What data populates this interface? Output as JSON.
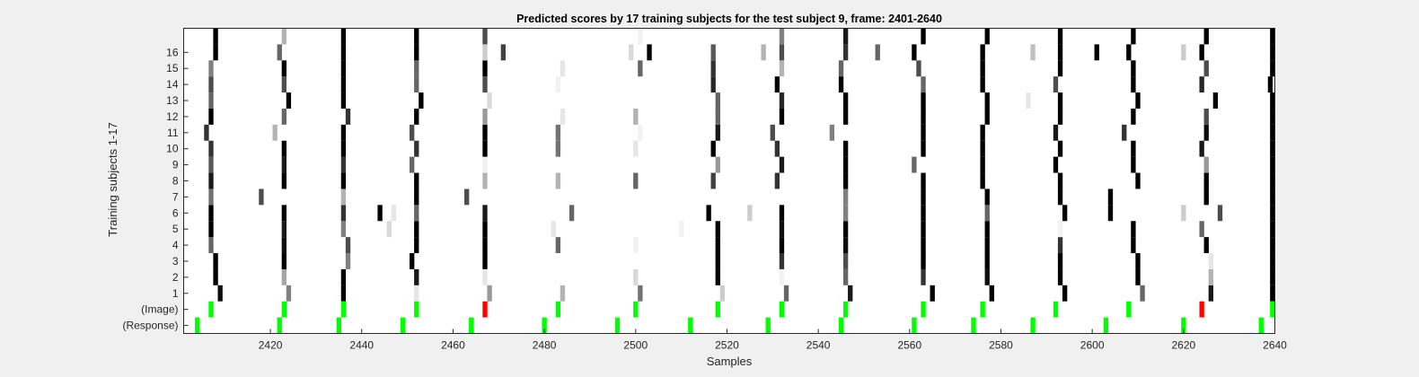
{
  "chart_data": {
    "type": "heatmap",
    "title": "Predicted scores by 17 training subjects for the test subject 9, frame: 2401-2640",
    "xlabel": "Samples",
    "ylabel": "Training subjects 1-17",
    "xlim": [
      2401,
      2640
    ],
    "xticks": [
      2420,
      2440,
      2460,
      2480,
      2500,
      2520,
      2540,
      2560,
      2580,
      2600,
      2620,
      2640
    ],
    "row_labels": [
      "(Response)",
      "(Image)",
      "1",
      "2",
      "3",
      "4",
      "5",
      "6",
      "7",
      "8",
      "9",
      "10",
      "11",
      "12",
      "13",
      "14",
      "15",
      "16",
      ""
    ],
    "colors": {
      "background": "#f0f0f0",
      "plot_background": "#ffffff",
      "target_marker": "#00ff00",
      "nontarget_marker": "#ff0000"
    },
    "response_samples": [
      2404,
      2422,
      2435,
      2449,
      2464,
      2480,
      2496,
      2512,
      2529,
      2545,
      2561,
      2574,
      2587,
      2603,
      2620,
      2637
    ],
    "image_markers": [
      {
        "sample": 2407,
        "type": "target"
      },
      {
        "sample": 2423,
        "type": "target"
      },
      {
        "sample": 2436,
        "type": "target"
      },
      {
        "sample": 2452,
        "type": "target"
      },
      {
        "sample": 2467,
        "type": "nontarget"
      },
      {
        "sample": 2483,
        "type": "target"
      },
      {
        "sample": 2500,
        "type": "target"
      },
      {
        "sample": 2518,
        "type": "target"
      },
      {
        "sample": 2532,
        "type": "target"
      },
      {
        "sample": 2546,
        "type": "target"
      },
      {
        "sample": 2563,
        "type": "target"
      },
      {
        "sample": 2576,
        "type": "target"
      },
      {
        "sample": 2592,
        "type": "target"
      },
      {
        "sample": 2608,
        "type": "target"
      },
      {
        "sample": 2624,
        "type": "nontarget"
      },
      {
        "sample": 2640,
        "type": "target"
      }
    ],
    "subject_cells": [
      {
        "subject": 1,
        "cells": [
          [
            2409,
            0.95
          ],
          [
            2424,
            0.5
          ],
          [
            2436,
            1
          ],
          [
            2452,
            0.1
          ],
          [
            2468,
            0.4
          ],
          [
            2484,
            0.3
          ],
          [
            2501,
            0.55
          ],
          [
            2519,
            0.2
          ],
          [
            2533,
            0.6
          ],
          [
            2547,
            0.9
          ],
          [
            2565,
            1
          ],
          [
            2578,
            1
          ],
          [
            2594,
            1
          ],
          [
            2611,
            0.6
          ],
          [
            2626,
            0.9
          ],
          [
            2640,
            1
          ]
        ]
      },
      {
        "subject": 2,
        "cells": [
          [
            2408,
            1
          ],
          [
            2423,
            0.35
          ],
          [
            2436,
            1
          ],
          [
            2452,
            0.9
          ],
          [
            2467,
            0.1
          ],
          [
            2500,
            0.15
          ],
          [
            2518,
            1
          ],
          [
            2532,
            0.05
          ],
          [
            2546,
            0.6
          ],
          [
            2563,
            0.8
          ],
          [
            2577,
            0.95
          ],
          [
            2593,
            1
          ],
          [
            2610,
            1
          ],
          [
            2626,
            0.3
          ],
          [
            2640,
            1
          ]
        ]
      },
      {
        "subject": 3,
        "cells": [
          [
            2408,
            1
          ],
          [
            2423,
            1
          ],
          [
            2437,
            0.5
          ],
          [
            2451,
            1
          ],
          [
            2467,
            1
          ],
          [
            2518,
            1
          ],
          [
            2532,
            0.8
          ],
          [
            2546,
            0.7
          ],
          [
            2563,
            1
          ],
          [
            2577,
            1
          ],
          [
            2593,
            1
          ],
          [
            2610,
            1
          ],
          [
            2626,
            0.1
          ],
          [
            2640,
            1
          ]
        ]
      },
      {
        "subject": 4,
        "cells": [
          [
            2407,
            0.6
          ],
          [
            2423,
            0.95
          ],
          [
            2437,
            0.7
          ],
          [
            2452,
            1
          ],
          [
            2467,
            1
          ],
          [
            2483,
            0.6
          ],
          [
            2500,
            0.05
          ],
          [
            2518,
            1
          ],
          [
            2532,
            1
          ],
          [
            2546,
            0.95
          ],
          [
            2563,
            1
          ],
          [
            2577,
            1
          ],
          [
            2593,
            0.8
          ],
          [
            2609,
            1
          ],
          [
            2625,
            1
          ],
          [
            2640,
            1
          ]
        ]
      },
      {
        "subject": 5,
        "cells": [
          [
            2407,
            1
          ],
          [
            2423,
            0.9
          ],
          [
            2436,
            0.5
          ],
          [
            2446,
            0.15
          ],
          [
            2452,
            1
          ],
          [
            2467,
            1
          ],
          [
            2482,
            0.1
          ],
          [
            2510,
            0.05
          ],
          [
            2518,
            1
          ],
          [
            2532,
            0.95
          ],
          [
            2546,
            1
          ],
          [
            2563,
            1
          ],
          [
            2577,
            1
          ],
          [
            2593,
            0.05
          ],
          [
            2609,
            1
          ],
          [
            2624,
            0.6
          ],
          [
            2640,
            1
          ]
        ]
      },
      {
        "subject": 6,
        "cells": [
          [
            2407,
            1
          ],
          [
            2423,
            1
          ],
          [
            2436,
            0.8
          ],
          [
            2444,
            1
          ],
          [
            2447,
            0.1
          ],
          [
            2452,
            0.6
          ],
          [
            2467,
            0.9
          ],
          [
            2486,
            0.6
          ],
          [
            2516,
            1
          ],
          [
            2525,
            0.2
          ],
          [
            2532,
            1
          ],
          [
            2546,
            0.5
          ],
          [
            2563,
            1
          ],
          [
            2577,
            0.6
          ],
          [
            2594,
            1
          ],
          [
            2604,
            1
          ],
          [
            2620,
            0.2
          ],
          [
            2628,
            0.7
          ],
          [
            2640,
            1
          ]
        ]
      },
      {
        "subject": 7,
        "cells": [
          [
            2407,
            0.55
          ],
          [
            2418,
            0.7
          ],
          [
            2436,
            0.3
          ],
          [
            2452,
            1
          ],
          [
            2463,
            0.7
          ],
          [
            2546,
            0.5
          ],
          [
            2563,
            1
          ],
          [
            2577,
            1
          ],
          [
            2593,
            1
          ],
          [
            2604,
            1
          ],
          [
            2625,
            1
          ],
          [
            2640,
            1
          ]
        ]
      },
      {
        "subject": 8,
        "cells": [
          [
            2407,
            0.9
          ],
          [
            2423,
            1
          ],
          [
            2436,
            1
          ],
          [
            2452,
            1
          ],
          [
            2467,
            0.3
          ],
          [
            2483,
            0.3
          ],
          [
            2500,
            0.6
          ],
          [
            2517,
            0.75
          ],
          [
            2531,
            0.8
          ],
          [
            2546,
            1
          ],
          [
            2563,
            1
          ],
          [
            2576,
            1
          ],
          [
            2593,
            1
          ],
          [
            2610,
            1
          ],
          [
            2625,
            1
          ],
          [
            2640,
            1
          ]
        ]
      },
      {
        "subject": 9,
        "cells": [
          [
            2407,
            0.65
          ],
          [
            2423,
            0.9
          ],
          [
            2436,
            0.8
          ],
          [
            2451,
            0.6
          ],
          [
            2467,
            0.05
          ],
          [
            2518,
            0.4
          ],
          [
            2532,
            0.9
          ],
          [
            2546,
            1
          ],
          [
            2561,
            0.6
          ],
          [
            2576,
            1
          ],
          [
            2592,
            1
          ],
          [
            2609,
            1
          ],
          [
            2625,
            0.4
          ],
          [
            2640,
            1
          ]
        ]
      },
      {
        "subject": 10,
        "cells": [
          [
            2407,
            0.8
          ],
          [
            2423,
            1
          ],
          [
            2436,
            1
          ],
          [
            2452,
            0.8
          ],
          [
            2467,
            1
          ],
          [
            2483,
            0.55
          ],
          [
            2500,
            0.1
          ],
          [
            2517,
            1
          ],
          [
            2531,
            0.8
          ],
          [
            2546,
            1
          ],
          [
            2563,
            1
          ],
          [
            2576,
            1
          ],
          [
            2593,
            1
          ],
          [
            2609,
            1
          ],
          [
            2624,
            0.9
          ],
          [
            2640,
            1
          ]
        ]
      },
      {
        "subject": 11,
        "cells": [
          [
            2406,
            0.8
          ],
          [
            2421,
            0.3
          ],
          [
            2436,
            1
          ],
          [
            2451,
            0.7
          ],
          [
            2467,
            1
          ],
          [
            2483,
            0.55
          ],
          [
            2501,
            0.05
          ],
          [
            2518,
            0.9
          ],
          [
            2530,
            0.7
          ],
          [
            2543,
            0.5
          ],
          [
            2563,
            1
          ],
          [
            2576,
            1
          ],
          [
            2592,
            0.9
          ],
          [
            2607,
            0.8
          ],
          [
            2625,
            0.95
          ],
          [
            2640,
            1
          ]
        ]
      },
      {
        "subject": 12,
        "cells": [
          [
            2407,
            1
          ],
          [
            2423,
            0.6
          ],
          [
            2437,
            0.8
          ],
          [
            2452,
            1
          ],
          [
            2467,
            0.4
          ],
          [
            2484,
            0.1
          ],
          [
            2500,
            0.3
          ],
          [
            2518,
            0.6
          ],
          [
            2532,
            1
          ],
          [
            2546,
            1
          ],
          [
            2563,
            1
          ],
          [
            2577,
            1
          ],
          [
            2593,
            1
          ],
          [
            2609,
            1
          ],
          [
            2625,
            0.7
          ],
          [
            2640,
            1
          ]
        ]
      },
      {
        "subject": 13,
        "cells": [
          [
            2407,
            0.6
          ],
          [
            2424,
            1
          ],
          [
            2436,
            1
          ],
          [
            2453,
            1
          ],
          [
            2468,
            0.15
          ],
          [
            2518,
            0.6
          ],
          [
            2532,
            0.85
          ],
          [
            2546,
            1
          ],
          [
            2563,
            1
          ],
          [
            2577,
            1
          ],
          [
            2586,
            0.1
          ],
          [
            2593,
            1
          ],
          [
            2610,
            1
          ],
          [
            2627,
            1
          ],
          [
            2640,
            1
          ]
        ]
      },
      {
        "subject": 14,
        "cells": [
          [
            2407,
            0.7
          ],
          [
            2423,
            0.7
          ],
          [
            2436,
            1
          ],
          [
            2452,
            0.6
          ],
          [
            2467,
            0.7
          ],
          [
            2483,
            0.05
          ],
          [
            2517,
            0.85
          ],
          [
            2531,
            1
          ],
          [
            2545,
            1
          ],
          [
            2563,
            0.6
          ],
          [
            2576,
            1
          ],
          [
            2592,
            0.7
          ],
          [
            2609,
            1
          ],
          [
            2624,
            0.85
          ],
          [
            2639,
            1
          ]
        ]
      },
      {
        "subject": 15,
        "cells": [
          [
            2407,
            0.5
          ],
          [
            2423,
            1
          ],
          [
            2436,
            1
          ],
          [
            2452,
            0.6
          ],
          [
            2467,
            1
          ],
          [
            2484,
            0.1
          ],
          [
            2501,
            0.6
          ],
          [
            2517,
            0.8
          ],
          [
            2532,
            0.3
          ],
          [
            2545,
            0.6
          ],
          [
            2562,
            0.7
          ],
          [
            2576,
            1
          ],
          [
            2593,
            1
          ],
          [
            2609,
            1
          ],
          [
            2625,
            0.7
          ],
          [
            2640,
            1
          ]
        ]
      },
      {
        "subject": 16,
        "cells": [
          [
            2408,
            1
          ],
          [
            2422,
            0.6
          ],
          [
            2436,
            1
          ],
          [
            2452,
            1
          ],
          [
            2467,
            0.2
          ],
          [
            2471,
            0.75
          ],
          [
            2499,
            0.15
          ],
          [
            2503,
            1
          ],
          [
            2517,
            0.65
          ],
          [
            2528,
            0.3
          ],
          [
            2532,
            0.7
          ],
          [
            2546,
            0.8
          ],
          [
            2553,
            0.6
          ],
          [
            2561,
            1
          ],
          [
            2576,
            1
          ],
          [
            2587,
            0.25
          ],
          [
            2593,
            1
          ],
          [
            2601,
            1
          ],
          [
            2608,
            1
          ],
          [
            2620,
            0.2
          ],
          [
            2624,
            1
          ],
          [
            2640,
            1
          ]
        ]
      },
      {
        "subject": 17,
        "cells": [
          [
            2408,
            1
          ],
          [
            2423,
            0.3
          ],
          [
            2436,
            1
          ],
          [
            2452,
            1
          ],
          [
            2467,
            0.7
          ],
          [
            2501,
            0.05
          ],
          [
            2532,
            0.5
          ],
          [
            2546,
            0.9
          ],
          [
            2563,
            1
          ],
          [
            2577,
            1
          ],
          [
            2593,
            1
          ],
          [
            2609,
            1
          ],
          [
            2625,
            1
          ],
          [
            2640,
            1
          ]
        ]
      }
    ]
  }
}
